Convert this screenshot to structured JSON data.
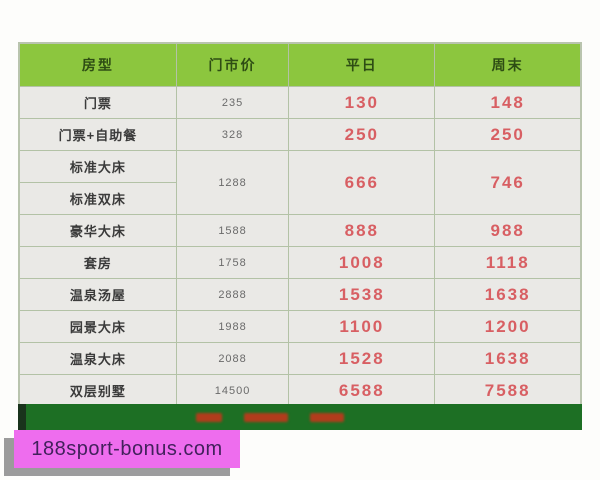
{
  "watermark": {
    "text": "188sport-bonus.com",
    "bg_color": "#ee6dee",
    "text_color": "#42215c",
    "shadow_color": "#9b9b9b"
  },
  "colors": {
    "header_bg": "#8cc63e",
    "header_text": "#2e4d14",
    "row_bg": "#eae9e6",
    "border": "#b3c2a6",
    "room_label_text": "#3b3b3b",
    "list_price_text": "#6a6a6a",
    "price_text": "#d85f63",
    "footer_bar_bg": "#1d6f24",
    "footer_accent_text": "#b23c1c"
  },
  "table": {
    "header": {
      "room_type": "房型",
      "list_price": "门市价",
      "weekday": "平日",
      "weekend": "周末"
    },
    "rows": [
      {
        "label": "门票",
        "list": "235",
        "weekday": "130",
        "weekend": "148"
      },
      {
        "label": "门票+自助餐",
        "list": "328",
        "weekday": "250",
        "weekend": "250"
      },
      {
        "label": "标准大床",
        "list": "1288",
        "weekday": "666",
        "weekend": "746"
      },
      {
        "label": "标准双床"
      },
      {
        "label": "豪华大床",
        "list": "1588",
        "weekday": "888",
        "weekend": "988"
      },
      {
        "label": "套房",
        "list": "1758",
        "weekday": "1008",
        "weekend": "1118"
      },
      {
        "label": "温泉汤屋",
        "list": "2888",
        "weekday": "1538",
        "weekend": "1638"
      },
      {
        "label": "园景大床",
        "list": "1988",
        "weekday": "1100",
        "weekend": "1200"
      },
      {
        "label": "温泉大床",
        "list": "2088",
        "weekday": "1528",
        "weekend": "1638"
      },
      {
        "label": "双层别墅",
        "list": "14500",
        "weekday": "6588",
        "weekend": "7588"
      }
    ],
    "merged_note": "rows 标准大床/标准双床 share one 门市价, 平日 and 周末 cell"
  }
}
